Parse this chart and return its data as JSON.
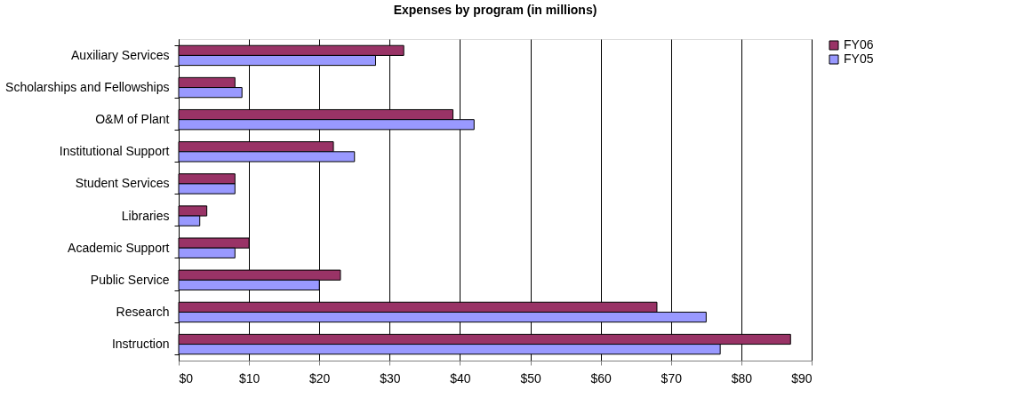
{
  "chart_data": {
    "type": "bar",
    "orientation": "horizontal",
    "title": "Expenses by program (in millions)",
    "categories": [
      "Auxiliary Services",
      "Scholarships and Fellowships",
      "O&M of Plant",
      "Institutional Support",
      "Student Services",
      "Libraries",
      "Academic Support",
      "Public Service",
      "Research",
      "Instruction"
    ],
    "series": [
      {
        "name": "FY06",
        "color": "#993366",
        "values": [
          32,
          8,
          39,
          22,
          8,
          4,
          10,
          23,
          68,
          87
        ]
      },
      {
        "name": "FY05",
        "color": "#9999ff",
        "values": [
          28,
          9,
          42,
          25,
          8,
          3,
          8,
          20,
          75,
          77
        ]
      }
    ],
    "xlim": [
      0,
      90
    ],
    "xticks": [
      {
        "value": 0,
        "label": "$0"
      },
      {
        "value": 10,
        "label": "$10"
      },
      {
        "value": 20,
        "label": "$20"
      },
      {
        "value": 30,
        "label": "$30"
      },
      {
        "value": 40,
        "label": "$40"
      },
      {
        "value": 50,
        "label": "$50"
      },
      {
        "value": 60,
        "label": "$60"
      },
      {
        "value": 70,
        "label": "$70"
      },
      {
        "value": 80,
        "label": "$80"
      },
      {
        "value": 90,
        "label": "$90"
      }
    ],
    "grid": "x",
    "legend": "right"
  }
}
